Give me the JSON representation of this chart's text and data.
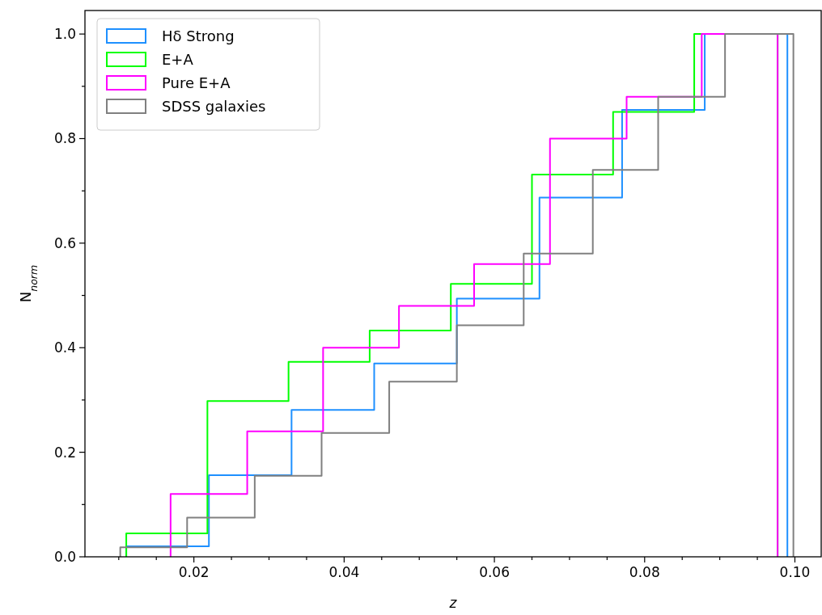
{
  "chart_data": {
    "type": "step",
    "xlabel": "z",
    "ylabel": "N$_{norm}$",
    "xlim": [
      0.0055,
      0.1035
    ],
    "ylim": [
      0,
      1.045
    ],
    "xticks": [
      {
        "value": 0.01,
        "label": null
      },
      {
        "value": 0.015,
        "label": null
      },
      0.02,
      {
        "value": 0.025,
        "label": null
      },
      {
        "value": 0.03,
        "label": null
      },
      {
        "value": 0.035,
        "label": null
      },
      0.04,
      {
        "value": 0.045,
        "label": null
      },
      {
        "value": 0.05,
        "label": null
      },
      {
        "value": 0.055,
        "label": null
      },
      0.06,
      {
        "value": 0.065,
        "label": null
      },
      {
        "value": 0.07,
        "label": null
      },
      {
        "value": 0.075,
        "label": null
      },
      0.08,
      {
        "value": 0.085,
        "label": null
      },
      {
        "value": 0.09,
        "label": null
      },
      {
        "value": 0.095,
        "label": null
      },
      {
        "value": 0.1,
        "label": "0.10"
      }
    ],
    "yticks": [
      {
        "value": 0,
        "label": "0.0"
      },
      {
        "value": 0.1,
        "label": null
      },
      0.2,
      {
        "value": 0.3,
        "label": null
      },
      0.4,
      {
        "value": 0.5,
        "label": null
      },
      0.6,
      {
        "value": 0.7,
        "label": null
      },
      0.8,
      {
        "value": 0.9,
        "label": null
      },
      {
        "value": 1,
        "label": "1.0"
      }
    ],
    "grid": false,
    "legend": "top left",
    "series": [
      {
        "name": "Hδ Strong",
        "color": "#1e90ff",
        "x": [
          0.011,
          0.011,
          0.022,
          0.033,
          0.044,
          0.055,
          0.066,
          0.077,
          0.088,
          0.099,
          0.099
        ],
        "values": [
          0,
          0.02,
          0.156,
          0.281,
          0.37,
          0.494,
          0.687,
          0.855,
          1.0,
          1.0,
          0
        ]
      },
      {
        "name": "E+A",
        "color": "#00ff00",
        "x": [
          0.011,
          0.011,
          0.0218,
          0.0326,
          0.0434,
          0.0542,
          0.065,
          0.0758,
          0.0866,
          0.0977,
          0.0977
        ],
        "values": [
          0,
          0.045,
          0.298,
          0.373,
          0.433,
          0.522,
          0.731,
          0.851,
          1.0,
          1.0,
          0
        ]
      },
      {
        "name": "Pure E+A",
        "color": "#ff00ff",
        "x": [
          0.0169,
          0.0169,
          0.0271,
          0.0372,
          0.0473,
          0.0573,
          0.0674,
          0.0776,
          0.0876,
          0.0977,
          0.0977
        ],
        "values": [
          0,
          0.12,
          0.24,
          0.4,
          0.48,
          0.56,
          0.8,
          0.88,
          1.0,
          1.0,
          0
        ]
      },
      {
        "name": "SDSS galaxies",
        "color": "#808080",
        "x": [
          0.0102,
          0.0102,
          0.0191,
          0.0281,
          0.037,
          0.046,
          0.055,
          0.0639,
          0.0731,
          0.0818,
          0.0907,
          0.0998,
          0.0998
        ],
        "values": [
          0,
          0.018,
          0.075,
          0.155,
          0.237,
          0.335,
          0.443,
          0.58,
          0.74,
          0.88,
          1.0,
          1.0,
          0
        ]
      }
    ]
  }
}
